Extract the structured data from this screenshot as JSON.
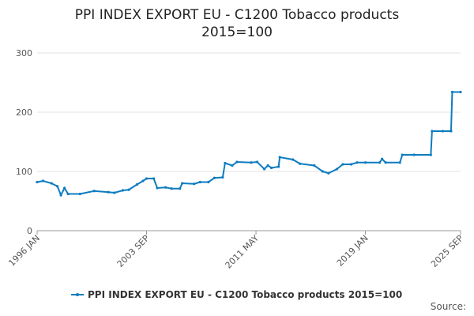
{
  "chart_data": {
    "type": "line",
    "title": [
      "PPI INDEX EXPORT EU - C1200 Tobacco products",
      "2015=100"
    ],
    "source": "Source:",
    "x": [
      "1996-01",
      "1996-06",
      "1997-01",
      "1997-06",
      "1997-09",
      "1997-12",
      "1998-03",
      "1999-01",
      "2000-01",
      "2001-01",
      "2001-06",
      "2002-01",
      "2002-06",
      "2003-01",
      "2003-06",
      "2003-09",
      "2004-03",
      "2004-06",
      "2005-01",
      "2005-06",
      "2006-01",
      "2006-03",
      "2007-01",
      "2007-06",
      "2008-01",
      "2008-06",
      "2009-01",
      "2009-03",
      "2009-09",
      "2010-01",
      "2011-01",
      "2011-06",
      "2011-12",
      "2012-03",
      "2012-06",
      "2012-12",
      "2013-01",
      "2013-12",
      "2014-06",
      "2015-06",
      "2016-01",
      "2016-06",
      "2017-01",
      "2017-06",
      "2018-01",
      "2018-06",
      "2019-01",
      "2020-01",
      "2020-03",
      "2020-06",
      "2021-06",
      "2021-08",
      "2022-06",
      "2023-08",
      "2023-09",
      "2024-06",
      "2025-01",
      "2025-02",
      "2025-09"
    ],
    "series": [
      {
        "name": "PPI INDEX EXPORT EU - C1200 Tobacco products 2015=100",
        "color": "#0e7cc0",
        "values": [
          82,
          84,
          80,
          75,
          60,
          72,
          62,
          62,
          67,
          65,
          64,
          68,
          69,
          78,
          84,
          88,
          88,
          72,
          73,
          71,
          71,
          80,
          79,
          82,
          82,
          89,
          90,
          114,
          110,
          116,
          115,
          116,
          104,
          110,
          106,
          108,
          124,
          120,
          113,
          110,
          100,
          97,
          104,
          112,
          112,
          115,
          115,
          115,
          121,
          115,
          115,
          128,
          128,
          128,
          168,
          168,
          168,
          234,
          234
        ]
      }
    ],
    "xlim": [
      "1996-01",
      "2025-09"
    ],
    "xticks": [
      {
        "value": "1996-01",
        "label": "1996 JAN"
      },
      {
        "value": "2003-09",
        "label": "2003 SEP"
      },
      {
        "value": "2011-05",
        "label": "2011 MAY"
      },
      {
        "value": "2019-01",
        "label": "2019 JAN"
      },
      {
        "value": "2025-09",
        "label": "2025 SEP"
      }
    ],
    "ylim": [
      0,
      300
    ],
    "yticks": [
      0,
      100,
      200,
      300
    ],
    "grid": true
  }
}
